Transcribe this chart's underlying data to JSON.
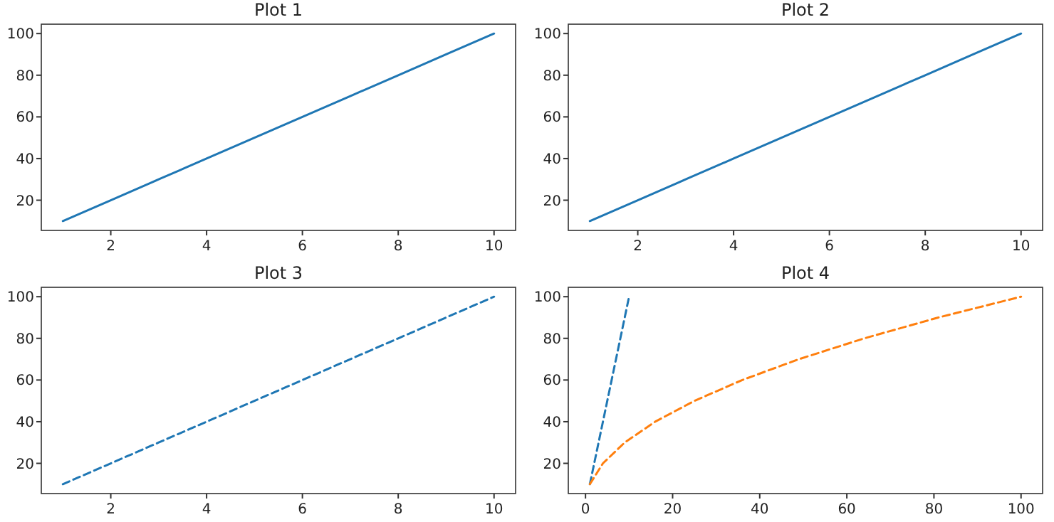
{
  "chart_data": [
    {
      "type": "line",
      "title": "Plot 1",
      "x": [
        1,
        2,
        3,
        4,
        5,
        6,
        7,
        8,
        9,
        10
      ],
      "series": [
        {
          "color": "#1f77b4",
          "values": [
            10,
            20,
            30,
            40,
            50,
            60,
            70,
            80,
            90,
            100
          ]
        }
      ],
      "xlim": [
        0.55,
        10.45
      ],
      "ylim": [
        5.5,
        104.5
      ],
      "xticks": [
        2,
        4,
        6,
        8,
        10
      ],
      "yticks": [
        20,
        40,
        60,
        80,
        100
      ],
      "line_style": "solid"
    },
    {
      "type": "line",
      "title": "Plot 2",
      "x": [
        1,
        2,
        3,
        4,
        5,
        6,
        7,
        8,
        9,
        10
      ],
      "series": [
        {
          "color": "#1f77b4",
          "values": [
            10,
            20,
            30,
            40,
            50,
            60,
            70,
            80,
            90,
            100
          ]
        }
      ],
      "xlim": [
        0.55,
        10.45
      ],
      "ylim": [
        5.5,
        104.5
      ],
      "xticks": [
        2,
        4,
        6,
        8,
        10
      ],
      "yticks": [
        20,
        40,
        60,
        80,
        100
      ],
      "line_style": "solid"
    },
    {
      "type": "line",
      "title": "Plot 3",
      "x": [
        1,
        2,
        3,
        4,
        5,
        6,
        7,
        8,
        9,
        10
      ],
      "series": [
        {
          "color": "#1f77b4",
          "values": [
            10,
            20,
            30,
            40,
            50,
            60,
            70,
            80,
            90,
            100
          ]
        }
      ],
      "xlim": [
        0.55,
        10.45
      ],
      "ylim": [
        5.5,
        104.5
      ],
      "xticks": [
        2,
        4,
        6,
        8,
        10
      ],
      "yticks": [
        20,
        40,
        60,
        80,
        100
      ],
      "line_style": "dashed"
    },
    {
      "type": "line",
      "title": "Plot 4",
      "series": [
        {
          "color": "#1f77b4",
          "x": [
            1,
            2,
            3,
            4,
            5,
            6,
            7,
            8,
            9,
            10
          ],
          "values": [
            10,
            20,
            30,
            40,
            50,
            60,
            70,
            80,
            90,
            100
          ]
        },
        {
          "color": "#ff7f0e",
          "x": [
            1,
            4,
            9,
            16,
            25,
            36,
            49,
            64,
            81,
            100
          ],
          "values": [
            10,
            20,
            30,
            40,
            50,
            60,
            70,
            80,
            90,
            100
          ]
        }
      ],
      "xlim": [
        -3.95,
        104.95
      ],
      "ylim": [
        5.5,
        104.5
      ],
      "xticks": [
        0,
        20,
        40,
        60,
        80,
        100
      ],
      "yticks": [
        20,
        40,
        60,
        80,
        100
      ],
      "line_style": "dashed"
    }
  ]
}
